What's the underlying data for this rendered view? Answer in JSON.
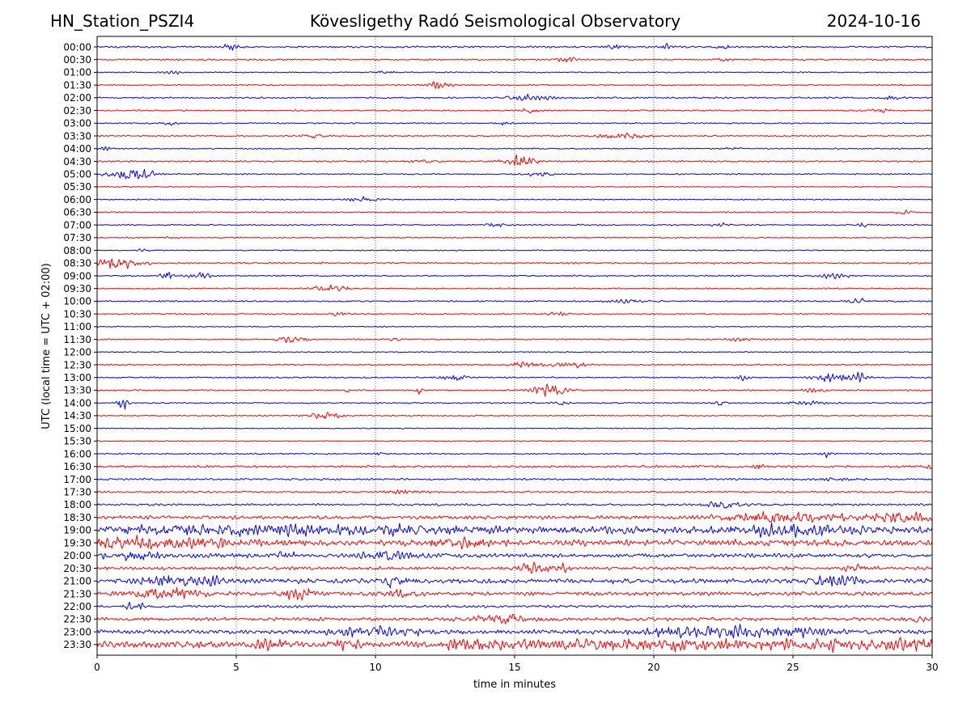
{
  "header": {
    "station": "HN_Station_PSZI4",
    "observatory": "Kövesligethy Radó Seismological Observatory",
    "date": "2024-10-16"
  },
  "chart_data": {
    "type": "line",
    "title": "Kövesligethy Radó Seismological Observatory",
    "xlabel": "time in minutes",
    "ylabel": "UTC (local time = UTC + 02:00)",
    "xlim": [
      0,
      30
    ],
    "xticks": [
      "0",
      "5",
      "10",
      "15",
      "20",
      "25",
      "30"
    ],
    "grid": "vertical dotted lines at 5-minute intervals",
    "colors": {
      "even_rows": "#0000ff",
      "odd_rows": "#ff0000"
    },
    "rows": [
      {
        "label": "00:00",
        "noise": 0.18,
        "events": [
          [
            4.8,
            0.3,
            0.5
          ],
          [
            18.6,
            0.3,
            0.5
          ],
          [
            20.4,
            0.3,
            0.5
          ],
          [
            22.5,
            0.3,
            0.4
          ]
        ]
      },
      {
        "label": "00:30",
        "noise": 0.15,
        "events": [
          [
            16.9,
            0.3,
            0.6
          ],
          [
            22.5,
            0.3,
            0.4
          ]
        ]
      },
      {
        "label": "01:00",
        "noise": 0.12,
        "events": [
          [
            2.8,
            0.3,
            0.3
          ],
          [
            10.3,
            0.3,
            0.3
          ]
        ]
      },
      {
        "label": "01:30",
        "noise": 0.14,
        "events": [
          [
            12.2,
            0.5,
            0.7
          ]
        ]
      },
      {
        "label": "02:00",
        "noise": 0.16,
        "events": [
          [
            15.5,
            0.8,
            0.6
          ],
          [
            28.5,
            0.3,
            0.4
          ]
        ]
      },
      {
        "label": "02:30",
        "noise": 0.14,
        "events": [
          [
            15.6,
            0.4,
            0.4
          ],
          [
            28.2,
            0.3,
            0.4
          ]
        ]
      },
      {
        "label": "03:00",
        "noise": 0.12,
        "events": [
          [
            2.6,
            0.3,
            0.3
          ],
          [
            14.6,
            0.3,
            0.3
          ]
        ]
      },
      {
        "label": "03:30",
        "noise": 0.13,
        "events": [
          [
            7.8,
            0.3,
            0.4
          ],
          [
            19.0,
            1.0,
            0.5
          ]
        ]
      },
      {
        "label": "04:00",
        "noise": 0.12,
        "events": [
          [
            0.3,
            0.2,
            0.4
          ],
          [
            22.8,
            0.3,
            0.3
          ]
        ]
      },
      {
        "label": "04:30",
        "noise": 0.16,
        "events": [
          [
            15.3,
            0.6,
            1.2
          ],
          [
            11.8,
            0.6,
            0.3
          ]
        ]
      },
      {
        "label": "05:00",
        "noise": 0.13,
        "events": [
          [
            1.2,
            0.8,
            1.3
          ],
          [
            15.9,
            0.5,
            0.5
          ]
        ]
      },
      {
        "label": "05:30",
        "noise": 0.1,
        "events": []
      },
      {
        "label": "06:00",
        "noise": 0.11,
        "events": [
          [
            9.6,
            0.5,
            0.6
          ]
        ]
      },
      {
        "label": "06:30",
        "noise": 0.12,
        "events": [
          [
            28.9,
            0.3,
            0.4
          ]
        ]
      },
      {
        "label": "07:00",
        "noise": 0.13,
        "events": [
          [
            14.3,
            0.3,
            0.4
          ],
          [
            22.4,
            0.3,
            0.4
          ],
          [
            27.6,
            0.2,
            0.5
          ]
        ]
      },
      {
        "label": "07:30",
        "noise": 0.12,
        "events": [
          [
            2.7,
            0.2,
            0.3
          ]
        ]
      },
      {
        "label": "08:00",
        "noise": 0.11,
        "events": [
          [
            1.7,
            0.2,
            0.3
          ]
        ]
      },
      {
        "label": "08:30",
        "noise": 0.16,
        "events": [
          [
            0.7,
            0.8,
            1.2
          ]
        ]
      },
      {
        "label": "09:00",
        "noise": 0.14,
        "events": [
          [
            2.5,
            0.2,
            1.0
          ],
          [
            3.7,
            0.4,
            0.6
          ],
          [
            26.5,
            0.6,
            0.4
          ]
        ]
      },
      {
        "label": "09:30",
        "noise": 0.13,
        "events": [
          [
            8.4,
            0.6,
            0.7
          ]
        ]
      },
      {
        "label": "10:00",
        "noise": 0.15,
        "events": [
          [
            19.0,
            0.6,
            0.4
          ],
          [
            27.3,
            0.3,
            0.6
          ]
        ]
      },
      {
        "label": "10:30",
        "noise": 0.12,
        "events": [
          [
            8.7,
            0.3,
            0.4
          ],
          [
            16.5,
            0.4,
            0.4
          ]
        ]
      },
      {
        "label": "11:00",
        "noise": 0.1,
        "events": []
      },
      {
        "label": "11:30",
        "noise": 0.13,
        "events": [
          [
            7.0,
            0.5,
            0.6
          ],
          [
            10.6,
            0.2,
            0.6
          ],
          [
            23.0,
            0.4,
            0.3
          ]
        ]
      },
      {
        "label": "12:00",
        "noise": 0.11,
        "events": []
      },
      {
        "label": "12:30",
        "noise": 0.14,
        "events": [
          [
            15.3,
            0.5,
            0.5
          ],
          [
            16.5,
            0.7,
            0.4
          ],
          [
            17.3,
            0.2,
            0.5
          ]
        ]
      },
      {
        "label": "13:00",
        "noise": 0.14,
        "events": [
          [
            12.8,
            0.5,
            0.6
          ],
          [
            23.2,
            0.2,
            0.6
          ],
          [
            26.5,
            0.7,
            1.0
          ],
          [
            27.4,
            0.3,
            0.8
          ]
        ]
      },
      {
        "label": "13:30",
        "noise": 0.14,
        "events": [
          [
            9.0,
            0.1,
            0.6
          ],
          [
            11.6,
            0.1,
            1.1
          ],
          [
            16.3,
            0.6,
            1.3
          ],
          [
            25.8,
            0.4,
            0.4
          ]
        ]
      },
      {
        "label": "14:00",
        "noise": 0.13,
        "events": [
          [
            0.9,
            0.2,
            1.1
          ],
          [
            16.7,
            0.3,
            0.4
          ],
          [
            22.4,
            0.2,
            0.6
          ],
          [
            25.5,
            0.8,
            0.3
          ]
        ]
      },
      {
        "label": "14:30",
        "noise": 0.12,
        "events": [
          [
            8.2,
            0.6,
            0.7
          ]
        ]
      },
      {
        "label": "15:00",
        "noise": 0.1,
        "events": []
      },
      {
        "label": "15:30",
        "noise": 0.11,
        "events": []
      },
      {
        "label": "16:00",
        "noise": 0.14,
        "events": [
          [
            26.2,
            0.2,
            0.5
          ],
          [
            10.1,
            0.2,
            0.3
          ]
        ]
      },
      {
        "label": "16:30",
        "noise": 0.22,
        "events": [
          [
            23.6,
            0.4,
            0.5
          ],
          [
            29.9,
            0.2,
            0.6
          ]
        ]
      },
      {
        "label": "17:00",
        "noise": 0.18,
        "events": [
          [
            26.5,
            0.6,
            0.3
          ]
        ]
      },
      {
        "label": "17:30",
        "noise": 0.17,
        "events": [
          [
            11.0,
            0.6,
            0.4
          ]
        ]
      },
      {
        "label": "18:00",
        "noise": 0.2,
        "events": [
          [
            22.6,
            0.8,
            0.6
          ]
        ]
      },
      {
        "label": "18:30",
        "noise": 0.35,
        "events": [
          [
            24.6,
            2.0,
            1.0
          ],
          [
            29.0,
            1.0,
            1.1
          ]
        ]
      },
      {
        "label": "19:00",
        "noise": 0.75,
        "events": [
          [
            4.5,
            2.0,
            1.1
          ],
          [
            8.0,
            2.0,
            1.0
          ],
          [
            10.0,
            2.0,
            1.0
          ],
          [
            25.0,
            1.5,
            1.1
          ]
        ]
      },
      {
        "label": "19:30",
        "noise": 0.6,
        "events": [
          [
            1.0,
            1.5,
            1.0
          ],
          [
            3.8,
            1.0,
            1.0
          ],
          [
            13.0,
            1.0,
            0.8
          ]
        ]
      },
      {
        "label": "20:00",
        "noise": 0.4,
        "events": [
          [
            1.3,
            1.0,
            0.7
          ],
          [
            6.8,
            0.5,
            0.6
          ],
          [
            10.4,
            1.0,
            0.7
          ]
        ]
      },
      {
        "label": "20:30",
        "noise": 0.3,
        "events": [
          [
            15.6,
            0.5,
            1.0
          ],
          [
            16.7,
            0.3,
            0.7
          ],
          [
            27.3,
            0.5,
            0.6
          ]
        ]
      },
      {
        "label": "21:00",
        "noise": 0.45,
        "events": [
          [
            2.4,
            1.0,
            0.9
          ],
          [
            4.0,
            0.5,
            0.9
          ],
          [
            10.6,
            0.5,
            0.8
          ],
          [
            26.5,
            0.8,
            1.0
          ]
        ]
      },
      {
        "label": "21:30",
        "noise": 0.4,
        "events": [
          [
            2.6,
            1.0,
            1.0
          ],
          [
            7.2,
            0.5,
            0.9
          ],
          [
            10.8,
            0.5,
            0.6
          ]
        ]
      },
      {
        "label": "22:00",
        "noise": 0.25,
        "events": [
          [
            1.4,
            0.3,
            1.1
          ]
        ]
      },
      {
        "label": "22:30",
        "noise": 0.35,
        "events": [
          [
            14.6,
            1.0,
            0.8
          ],
          [
            29.5,
            0.4,
            0.7
          ]
        ]
      },
      {
        "label": "23:00",
        "noise": 0.4,
        "events": [
          [
            10.0,
            1.5,
            0.8
          ],
          [
            21.5,
            1.5,
            0.9
          ],
          [
            24.0,
            2.0,
            1.0
          ]
        ]
      },
      {
        "label": "23:30",
        "noise": 0.65,
        "events": [
          [
            6.2,
            0.4,
            1.1
          ],
          [
            9.0,
            0.4,
            1.0
          ],
          [
            14.3,
            1.5,
            1.1
          ],
          [
            20.0,
            3.0,
            1.2
          ],
          [
            26.0,
            3.0,
            1.1
          ],
          [
            29.0,
            1.0,
            1.1
          ]
        ]
      }
    ]
  }
}
